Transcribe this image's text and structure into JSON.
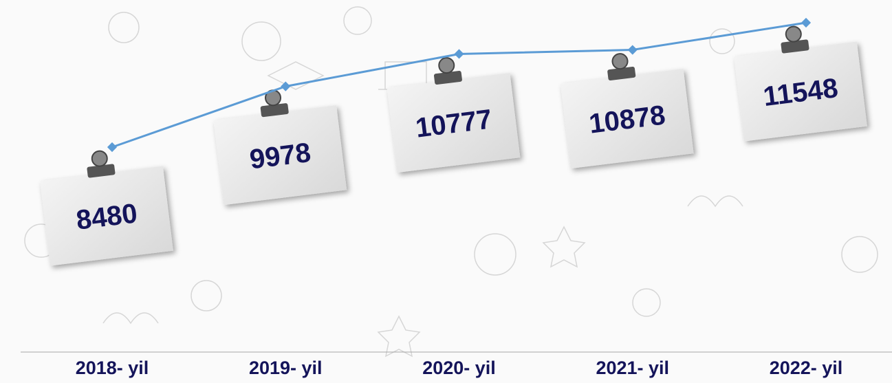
{
  "chart_data": {
    "type": "line",
    "categories": [
      "2018- yil",
      "2019- yil",
      "2020- yil",
      "2021- yil",
      "2022- yil"
    ],
    "values": [
      8480,
      9978,
      10777,
      10878,
      11548
    ],
    "color": "#5b9bd5"
  }
}
